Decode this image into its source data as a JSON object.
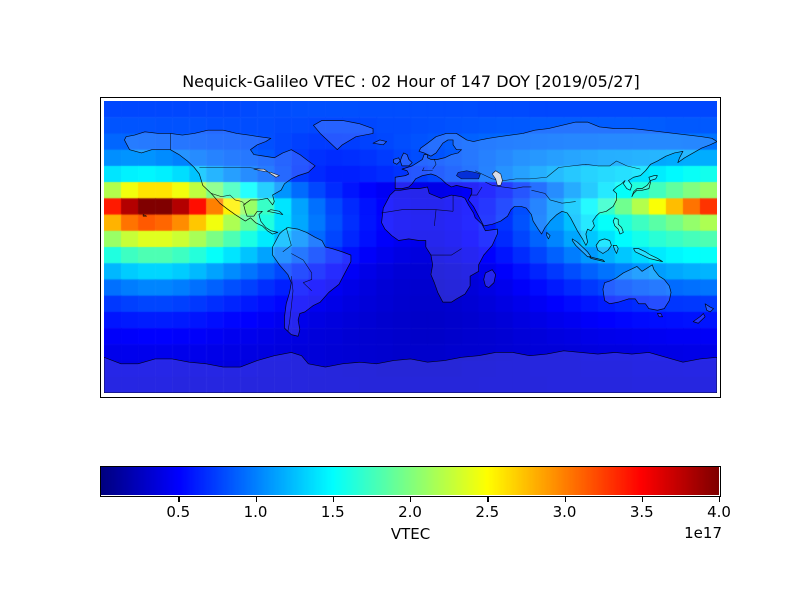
{
  "chart_data": {
    "type": "heatmap",
    "title": "Nequick-Galileo VTEC : 02 Hour of 147 DOY [2019/05/27]",
    "colormap": "jet",
    "projection": "equirectangular-world-map",
    "lon_range": [
      -180,
      180
    ],
    "lat_range": [
      -90,
      90
    ],
    "grid": {
      "cols": 36,
      "rows": 18,
      "lon_start": -180,
      "lon_step": 10,
      "lat_start": 90,
      "lat_step": -10,
      "row_order": "north-to-south"
    },
    "colorbar": {
      "label": "VTEC",
      "scale": "1e17",
      "min": 0,
      "max": 4,
      "ticks": [
        "0.5",
        "1.0",
        "1.5",
        "2.0",
        "2.5",
        "3.0",
        "3.5",
        "4.0"
      ]
    },
    "values_1e17": [
      [
        0.78,
        0.78,
        0.78,
        0.78,
        0.78,
        0.78,
        0.78,
        0.78,
        0.79,
        0.8,
        0.8,
        0.81,
        0.81,
        0.81,
        0.81,
        0.8,
        0.8,
        0.8,
        0.8,
        0.8,
        0.8,
        0.8,
        0.79,
        0.79,
        0.79,
        0.78,
        0.78,
        0.78,
        0.78,
        0.78,
        0.78,
        0.78,
        0.78,
        0.78,
        0.78,
        0.78
      ],
      [
        0.83,
        0.83,
        0.83,
        0.82,
        0.82,
        0.82,
        0.81,
        0.81,
        0.8,
        0.8,
        0.79,
        0.79,
        0.78,
        0.78,
        0.78,
        0.78,
        0.79,
        0.79,
        0.8,
        0.81,
        0.82,
        0.83,
        0.84,
        0.85,
        0.85,
        0.86,
        0.86,
        0.86,
        0.86,
        0.86,
        0.86,
        0.86,
        0.86,
        0.85,
        0.85,
        0.85
      ],
      [
        0.9,
        0.9,
        0.89,
        0.88,
        0.87,
        0.86,
        0.85,
        0.84,
        0.83,
        0.81,
        0.78,
        0.75,
        0.73,
        0.73,
        0.74,
        0.76,
        0.78,
        0.8,
        0.82,
        0.84,
        0.86,
        0.88,
        0.9,
        0.91,
        0.92,
        0.93,
        0.94,
        0.95,
        0.95,
        0.96,
        0.96,
        0.96,
        0.96,
        0.96,
        0.95,
        0.95
      ],
      [
        1.06,
        1.08,
        1.08,
        1.05,
        1.01,
        0.97,
        0.93,
        0.9,
        0.88,
        0.85,
        0.79,
        0.73,
        0.69,
        0.67,
        0.68,
        0.7,
        0.73,
        0.77,
        0.8,
        0.82,
        0.85,
        0.88,
        0.92,
        0.96,
        1.0,
        1.03,
        1.06,
        1.09,
        1.11,
        1.13,
        1.14,
        1.15,
        1.16,
        1.17,
        1.18,
        1.18
      ],
      [
        1.4,
        1.45,
        1.47,
        1.44,
        1.37,
        1.27,
        1.16,
        1.06,
        0.98,
        0.9,
        0.81,
        0.72,
        0.66,
        0.62,
        0.62,
        0.64,
        0.67,
        0.7,
        0.73,
        0.77,
        0.81,
        0.86,
        0.93,
        1.0,
        1.07,
        1.13,
        1.19,
        1.25,
        1.3,
        1.33,
        1.36,
        1.39,
        1.43,
        1.48,
        1.53,
        1.57
      ],
      [
        2.2,
        2.45,
        2.6,
        2.6,
        2.45,
        2.25,
        2.0,
        1.75,
        1.5,
        1.28,
        1.08,
        0.92,
        0.78,
        0.67,
        0.58,
        0.51,
        0.46,
        0.43,
        0.41,
        0.41,
        0.43,
        0.47,
        0.53,
        0.61,
        0.72,
        0.84,
        0.98,
        1.12,
        1.26,
        1.4,
        1.52,
        1.64,
        1.76,
        1.88,
        2.0,
        2.1
      ],
      [
        3.4,
        3.8,
        4.0,
        4.0,
        3.8,
        3.45,
        3.0,
        2.55,
        2.1,
        1.72,
        1.4,
        1.14,
        0.94,
        0.78,
        0.66,
        0.57,
        0.5,
        0.45,
        0.43,
        0.43,
        0.46,
        0.51,
        0.58,
        0.68,
        0.8,
        0.94,
        1.1,
        1.28,
        1.48,
        1.7,
        1.94,
        2.2,
        2.48,
        2.76,
        3.05,
        3.3
      ],
      [
        2.8,
        3.05,
        3.15,
        3.1,
        2.95,
        2.72,
        2.45,
        2.18,
        1.9,
        1.62,
        1.38,
        1.16,
        0.97,
        0.81,
        0.68,
        0.58,
        0.51,
        0.46,
        0.44,
        0.44,
        0.47,
        0.52,
        0.6,
        0.7,
        0.82,
        0.96,
        1.1,
        1.25,
        1.4,
        1.52,
        1.63,
        1.74,
        1.85,
        1.96,
        2.08,
        2.18
      ],
      [
        2.1,
        2.28,
        2.38,
        2.38,
        2.3,
        2.16,
        1.98,
        1.8,
        1.6,
        1.42,
        1.24,
        1.07,
        0.91,
        0.77,
        0.65,
        0.56,
        0.49,
        0.44,
        0.42,
        0.42,
        0.45,
        0.5,
        0.57,
        0.66,
        0.77,
        0.89,
        1.02,
        1.15,
        1.28,
        1.39,
        1.49,
        1.58,
        1.66,
        1.72,
        1.77,
        1.8
      ],
      [
        1.62,
        1.74,
        1.8,
        1.8,
        1.74,
        1.64,
        1.52,
        1.4,
        1.27,
        1.14,
        1.01,
        0.88,
        0.76,
        0.65,
        0.56,
        0.48,
        0.43,
        0.39,
        0.37,
        0.37,
        0.4,
        0.44,
        0.5,
        0.58,
        0.67,
        0.77,
        0.88,
        0.99,
        1.1,
        1.2,
        1.28,
        1.36,
        1.42,
        1.47,
        1.5,
        1.52
      ],
      [
        1.22,
        1.3,
        1.34,
        1.34,
        1.3,
        1.23,
        1.14,
        1.05,
        0.96,
        0.87,
        0.78,
        0.69,
        0.61,
        0.53,
        0.47,
        0.41,
        0.37,
        0.34,
        0.33,
        0.33,
        0.35,
        0.38,
        0.43,
        0.49,
        0.56,
        0.64,
        0.72,
        0.8,
        0.88,
        0.95,
        1.01,
        1.07,
        1.12,
        1.16,
        1.19,
        1.21
      ],
      [
        0.94,
        0.99,
        1.02,
        1.02,
        0.99,
        0.94,
        0.88,
        0.81,
        0.75,
        0.68,
        0.62,
        0.56,
        0.5,
        0.45,
        0.41,
        0.37,
        0.34,
        0.32,
        0.31,
        0.31,
        0.33,
        0.35,
        0.39,
        0.43,
        0.48,
        0.54,
        0.6,
        0.66,
        0.72,
        0.77,
        0.82,
        0.86,
        0.89,
        0.92,
        0.94,
        0.96
      ],
      [
        0.72,
        0.75,
        0.77,
        0.77,
        0.75,
        0.72,
        0.68,
        0.64,
        0.6,
        0.56,
        0.52,
        0.48,
        0.44,
        0.41,
        0.38,
        0.35,
        0.33,
        0.31,
        0.3,
        0.3,
        0.31,
        0.33,
        0.36,
        0.39,
        0.42,
        0.46,
        0.5,
        0.54,
        0.58,
        0.61,
        0.64,
        0.67,
        0.69,
        0.71,
        0.72,
        0.73
      ],
      [
        0.58,
        0.6,
        0.61,
        0.61,
        0.6,
        0.58,
        0.55,
        0.52,
        0.5,
        0.47,
        0.44,
        0.42,
        0.39,
        0.37,
        0.35,
        0.33,
        0.31,
        0.3,
        0.29,
        0.29,
        0.3,
        0.31,
        0.33,
        0.35,
        0.38,
        0.4,
        0.43,
        0.45,
        0.48,
        0.5,
        0.52,
        0.54,
        0.55,
        0.56,
        0.57,
        0.58
      ],
      [
        0.48,
        0.49,
        0.5,
        0.5,
        0.49,
        0.48,
        0.46,
        0.44,
        0.43,
        0.41,
        0.39,
        0.38,
        0.36,
        0.35,
        0.33,
        0.32,
        0.31,
        0.3,
        0.29,
        0.29,
        0.3,
        0.31,
        0.32,
        0.33,
        0.35,
        0.36,
        0.38,
        0.39,
        0.41,
        0.42,
        0.43,
        0.44,
        0.45,
        0.46,
        0.46,
        0.47
      ],
      [
        0.42,
        0.43,
        0.43,
        0.43,
        0.42,
        0.42,
        0.41,
        0.4,
        0.39,
        0.38,
        0.37,
        0.36,
        0.35,
        0.34,
        0.33,
        0.32,
        0.31,
        0.3,
        0.3,
        0.3,
        0.31,
        0.31,
        0.32,
        0.33,
        0.34,
        0.35,
        0.35,
        0.36,
        0.37,
        0.38,
        0.38,
        0.39,
        0.4,
        0.4,
        0.41,
        0.41
      ],
      [
        0.39,
        0.39,
        0.39,
        0.39,
        0.38,
        0.38,
        0.38,
        0.37,
        0.37,
        0.36,
        0.36,
        0.35,
        0.35,
        0.34,
        0.33,
        0.33,
        0.32,
        0.32,
        0.32,
        0.32,
        0.32,
        0.33,
        0.33,
        0.34,
        0.34,
        0.35,
        0.35,
        0.35,
        0.36,
        0.36,
        0.36,
        0.37,
        0.37,
        0.37,
        0.38,
        0.38
      ],
      [
        0.37,
        0.37,
        0.37,
        0.37,
        0.36,
        0.36,
        0.36,
        0.36,
        0.35,
        0.35,
        0.35,
        0.35,
        0.34,
        0.34,
        0.34,
        0.33,
        0.33,
        0.33,
        0.33,
        0.33,
        0.33,
        0.33,
        0.34,
        0.34,
        0.34,
        0.34,
        0.35,
        0.35,
        0.35,
        0.35,
        0.35,
        0.36,
        0.36,
        0.36,
        0.36,
        0.36
      ]
    ]
  }
}
